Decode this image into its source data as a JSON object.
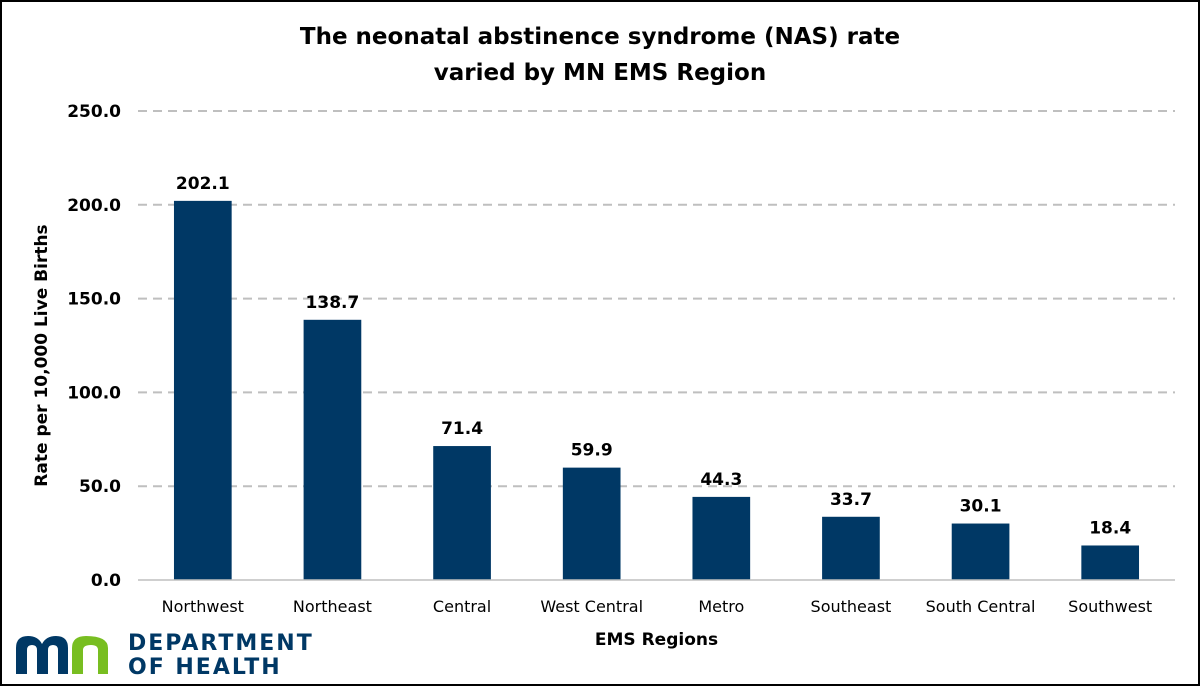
{
  "chart_data": {
    "type": "bar",
    "title_lines": [
      "The neonatal abstinence syndrome (NAS) rate",
      "varied by MN EMS Region"
    ],
    "xlabel": "EMS Regions",
    "ylabel": "Rate per 10,000 Live Births",
    "categories": [
      "Northwest",
      "Northeast",
      "Central",
      "West Central",
      "Metro",
      "Southeast",
      "South Central",
      "Southwest"
    ],
    "values": [
      202.1,
      138.7,
      71.4,
      59.9,
      44.3,
      33.7,
      30.1,
      18.4
    ],
    "value_labels": [
      "202.1",
      "138.7",
      "71.4",
      "59.9",
      "44.3",
      "33.7",
      "30.1",
      "18.4"
    ],
    "ylim": [
      0,
      250
    ],
    "yticks": [
      0,
      50,
      100,
      150,
      200,
      250
    ],
    "ytick_labels": [
      "0.0",
      "50.0",
      "100.0",
      "150.0",
      "200.0",
      "250.0"
    ],
    "grid": "horizontal dashed",
    "bar_color": "#003865",
    "grid_color": "#bfbfbf"
  },
  "logo": {
    "line1": "DEPARTMENT",
    "line2": "OF HEALTH",
    "mark_colors": [
      "#003865",
      "#78be21"
    ]
  }
}
